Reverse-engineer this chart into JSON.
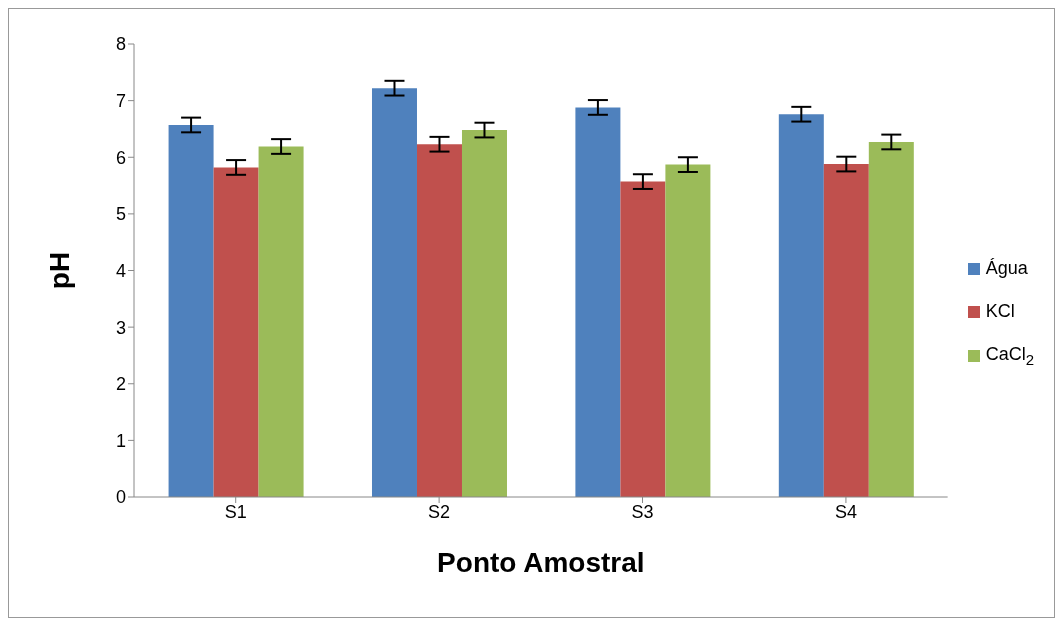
{
  "chart_data": {
    "type": "bar",
    "xlabel": "Ponto Amostral",
    "ylabel": "pH",
    "categories": [
      "S1",
      "S2",
      "S3",
      "S4"
    ],
    "series": [
      {
        "name": "Água",
        "color": "#4f81bd",
        "values": [
          6.57,
          7.22,
          6.88,
          6.76
        ],
        "errors": [
          0.13,
          0.13,
          0.13,
          0.13
        ]
      },
      {
        "name": "KCl",
        "color": "#c0504d",
        "values": [
          5.82,
          6.23,
          5.57,
          5.88
        ],
        "errors": [
          0.13,
          0.13,
          0.13,
          0.13
        ]
      },
      {
        "name": "CaCl$_{2}$",
        "color": "#9bbb59",
        "values": [
          6.19,
          6.48,
          5.87,
          6.27
        ],
        "errors": [
          0.13,
          0.13,
          0.13,
          0.13
        ]
      }
    ],
    "ylim": [
      0,
      8
    ],
    "yticks": [
      0,
      1,
      2,
      3,
      4,
      5,
      6,
      7,
      8
    ],
    "grid": false,
    "legend": "right"
  }
}
